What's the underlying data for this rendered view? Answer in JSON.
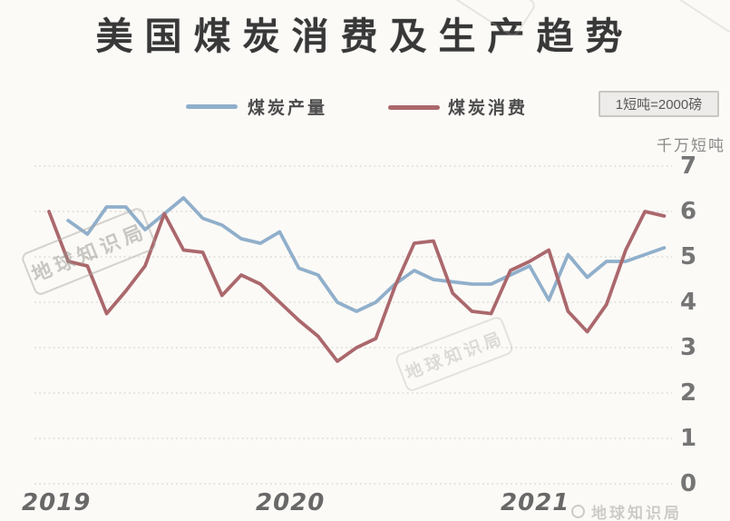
{
  "title": "美国煤炭消费及生产趋势",
  "note": "1短吨=2000磅",
  "unit_label": "千万短吨",
  "legend": [
    {
      "label": "煤炭产量",
      "color": "#90afcb"
    },
    {
      "label": "煤炭消费",
      "color": "#ab686c"
    }
  ],
  "watermark": {
    "stamp": "地球知识局",
    "footer": "地球知识局"
  },
  "colors": {
    "background": "#fbfaf7",
    "gridline": "#d8d5cf",
    "production_line": "#90afcb",
    "consumption_line": "#ab686c"
  },
  "chart_data": {
    "type": "line",
    "title": "美国煤炭消费及生产趋势",
    "xlabel": "",
    "ylabel": "千万短吨",
    "ylim": [
      0,
      7
    ],
    "y_ticks": [
      7,
      6,
      5,
      4,
      3,
      2,
      1,
      0
    ],
    "x_year_labels": [
      "2019",
      "2020",
      "2021"
    ],
    "x_unit": "month",
    "grid": "horizontal-dotted",
    "legend_position": "top-center",
    "note": "1短吨=2000磅",
    "series": [
      {
        "name": "煤炭产量",
        "color": "#90afcb",
        "start_month": "2019-02",
        "month_offset": 1,
        "values": [
          5.8,
          5.5,
          6.1,
          6.1,
          5.6,
          5.95,
          6.3,
          5.85,
          5.7,
          5.4,
          5.3,
          5.55,
          4.75,
          4.6,
          4.0,
          3.8,
          4.0,
          4.4,
          4.7,
          4.5,
          4.45,
          4.4,
          4.4,
          4.6,
          4.8,
          4.05,
          5.05,
          4.55,
          4.9,
          4.9,
          5.05,
          5.2
        ]
      },
      {
        "name": "煤炭消费",
        "color": "#ab686c",
        "start_month": "2019-01",
        "month_offset": 0,
        "values": [
          6.0,
          4.9,
          4.8,
          3.75,
          4.25,
          4.8,
          5.95,
          5.15,
          5.1,
          4.15,
          4.6,
          4.4,
          4.0,
          3.6,
          3.25,
          2.7,
          3.0,
          3.2,
          4.35,
          5.3,
          5.35,
          4.2,
          3.8,
          3.75,
          4.7,
          4.9,
          5.15,
          3.8,
          3.35,
          3.95,
          5.15,
          6.0,
          5.9
        ]
      }
    ]
  }
}
